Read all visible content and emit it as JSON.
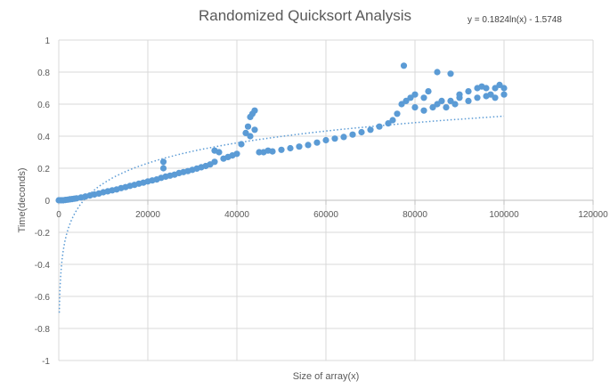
{
  "chart_data": {
    "type": "scatter",
    "title": "Randomized Quicksort Analysis",
    "xlabel": "Size of array(x)",
    "ylabel": "Time(deconds)",
    "xlim": [
      0,
      120000
    ],
    "ylim": [
      -1,
      1
    ],
    "x_ticks": [
      "0",
      "20000",
      "40000",
      "60000",
      "80000",
      "100000",
      "120000"
    ],
    "y_ticks": [
      "1",
      "0.8",
      "0.6",
      "0.4",
      "0.2",
      "0",
      "-0.2",
      "-0.4",
      "-0.6",
      "-0.8",
      "-1"
    ],
    "grid": true,
    "legend": "none",
    "annotation": "y = 0.1824ln(x) - 1.5748",
    "colors": {
      "points": "#5b9bd5",
      "trendline": "#5b9bd5",
      "grid": "#d9d9d9",
      "text": "#595959"
    },
    "series": [
      {
        "points": [
          [
            0,
            0
          ],
          [
            500,
            0
          ],
          [
            1000,
            0
          ],
          [
            1500,
            0.002
          ],
          [
            2000,
            0.004
          ],
          [
            2500,
            0.006
          ],
          [
            3000,
            0.008
          ],
          [
            3500,
            0.01
          ],
          [
            4000,
            0.012
          ],
          [
            5000,
            0.018
          ],
          [
            6000,
            0.024
          ],
          [
            7000,
            0.03
          ],
          [
            8000,
            0.036
          ],
          [
            9000,
            0.042
          ],
          [
            10000,
            0.05
          ],
          [
            11000,
            0.056
          ],
          [
            12000,
            0.062
          ],
          [
            13000,
            0.068
          ],
          [
            14000,
            0.076
          ],
          [
            15000,
            0.082
          ],
          [
            16000,
            0.09
          ],
          [
            17000,
            0.096
          ],
          [
            18000,
            0.104
          ],
          [
            19000,
            0.11
          ],
          [
            20000,
            0.118
          ],
          [
            21000,
            0.124
          ],
          [
            22000,
            0.13
          ],
          [
            23000,
            0.14
          ],
          [
            23500,
            0.24
          ],
          [
            23500,
            0.2
          ],
          [
            24000,
            0.148
          ],
          [
            25000,
            0.154
          ],
          [
            26000,
            0.16
          ],
          [
            27000,
            0.17
          ],
          [
            28000,
            0.176
          ],
          [
            29000,
            0.182
          ],
          [
            30000,
            0.19
          ],
          [
            31000,
            0.198
          ],
          [
            32000,
            0.206
          ],
          [
            33000,
            0.214
          ],
          [
            34000,
            0.224
          ],
          [
            35000,
            0.24
          ],
          [
            35000,
            0.31
          ],
          [
            36000,
            0.3
          ],
          [
            37000,
            0.26
          ],
          [
            38000,
            0.27
          ],
          [
            39000,
            0.28
          ],
          [
            40000,
            0.29
          ],
          [
            41000,
            0.35
          ],
          [
            42000,
            0.42
          ],
          [
            42500,
            0.46
          ],
          [
            43000,
            0.52
          ],
          [
            43500,
            0.54
          ],
          [
            44000,
            0.56
          ],
          [
            43000,
            0.4
          ],
          [
            44000,
            0.44
          ],
          [
            45000,
            0.3
          ],
          [
            46000,
            0.3
          ],
          [
            47000,
            0.31
          ],
          [
            48000,
            0.305
          ],
          [
            50000,
            0.315
          ],
          [
            52000,
            0.325
          ],
          [
            54000,
            0.335
          ],
          [
            56000,
            0.345
          ],
          [
            58000,
            0.36
          ],
          [
            60000,
            0.375
          ],
          [
            62000,
            0.385
          ],
          [
            64000,
            0.395
          ],
          [
            66000,
            0.41
          ],
          [
            68000,
            0.425
          ],
          [
            70000,
            0.44
          ],
          [
            72000,
            0.46
          ],
          [
            74000,
            0.48
          ],
          [
            75000,
            0.5
          ],
          [
            76000,
            0.54
          ],
          [
            77000,
            0.6
          ],
          [
            77500,
            0.84
          ],
          [
            78000,
            0.62
          ],
          [
            79000,
            0.64
          ],
          [
            80000,
            0.66
          ],
          [
            80000,
            0.58
          ],
          [
            82000,
            0.56
          ],
          [
            82000,
            0.64
          ],
          [
            83000,
            0.68
          ],
          [
            84000,
            0.58
          ],
          [
            85000,
            0.8
          ],
          [
            85000,
            0.6
          ],
          [
            86000,
            0.62
          ],
          [
            87000,
            0.58
          ],
          [
            88000,
            0.79
          ],
          [
            88000,
            0.62
          ],
          [
            89000,
            0.6
          ],
          [
            90000,
            0.64
          ],
          [
            90000,
            0.66
          ],
          [
            92000,
            0.62
          ],
          [
            92000,
            0.68
          ],
          [
            94000,
            0.64
          ],
          [
            94000,
            0.7
          ],
          [
            95000,
            0.71
          ],
          [
            96000,
            0.65
          ],
          [
            96000,
            0.7
          ],
          [
            97000,
            0.66
          ],
          [
            98000,
            0.64
          ],
          [
            98000,
            0.7
          ],
          [
            99000,
            0.72
          ],
          [
            100000,
            0.66
          ],
          [
            100000,
            0.7
          ]
        ]
      }
    ],
    "trendline": {
      "type": "log",
      "a": 0.1824,
      "b": -1.5748
    }
  }
}
